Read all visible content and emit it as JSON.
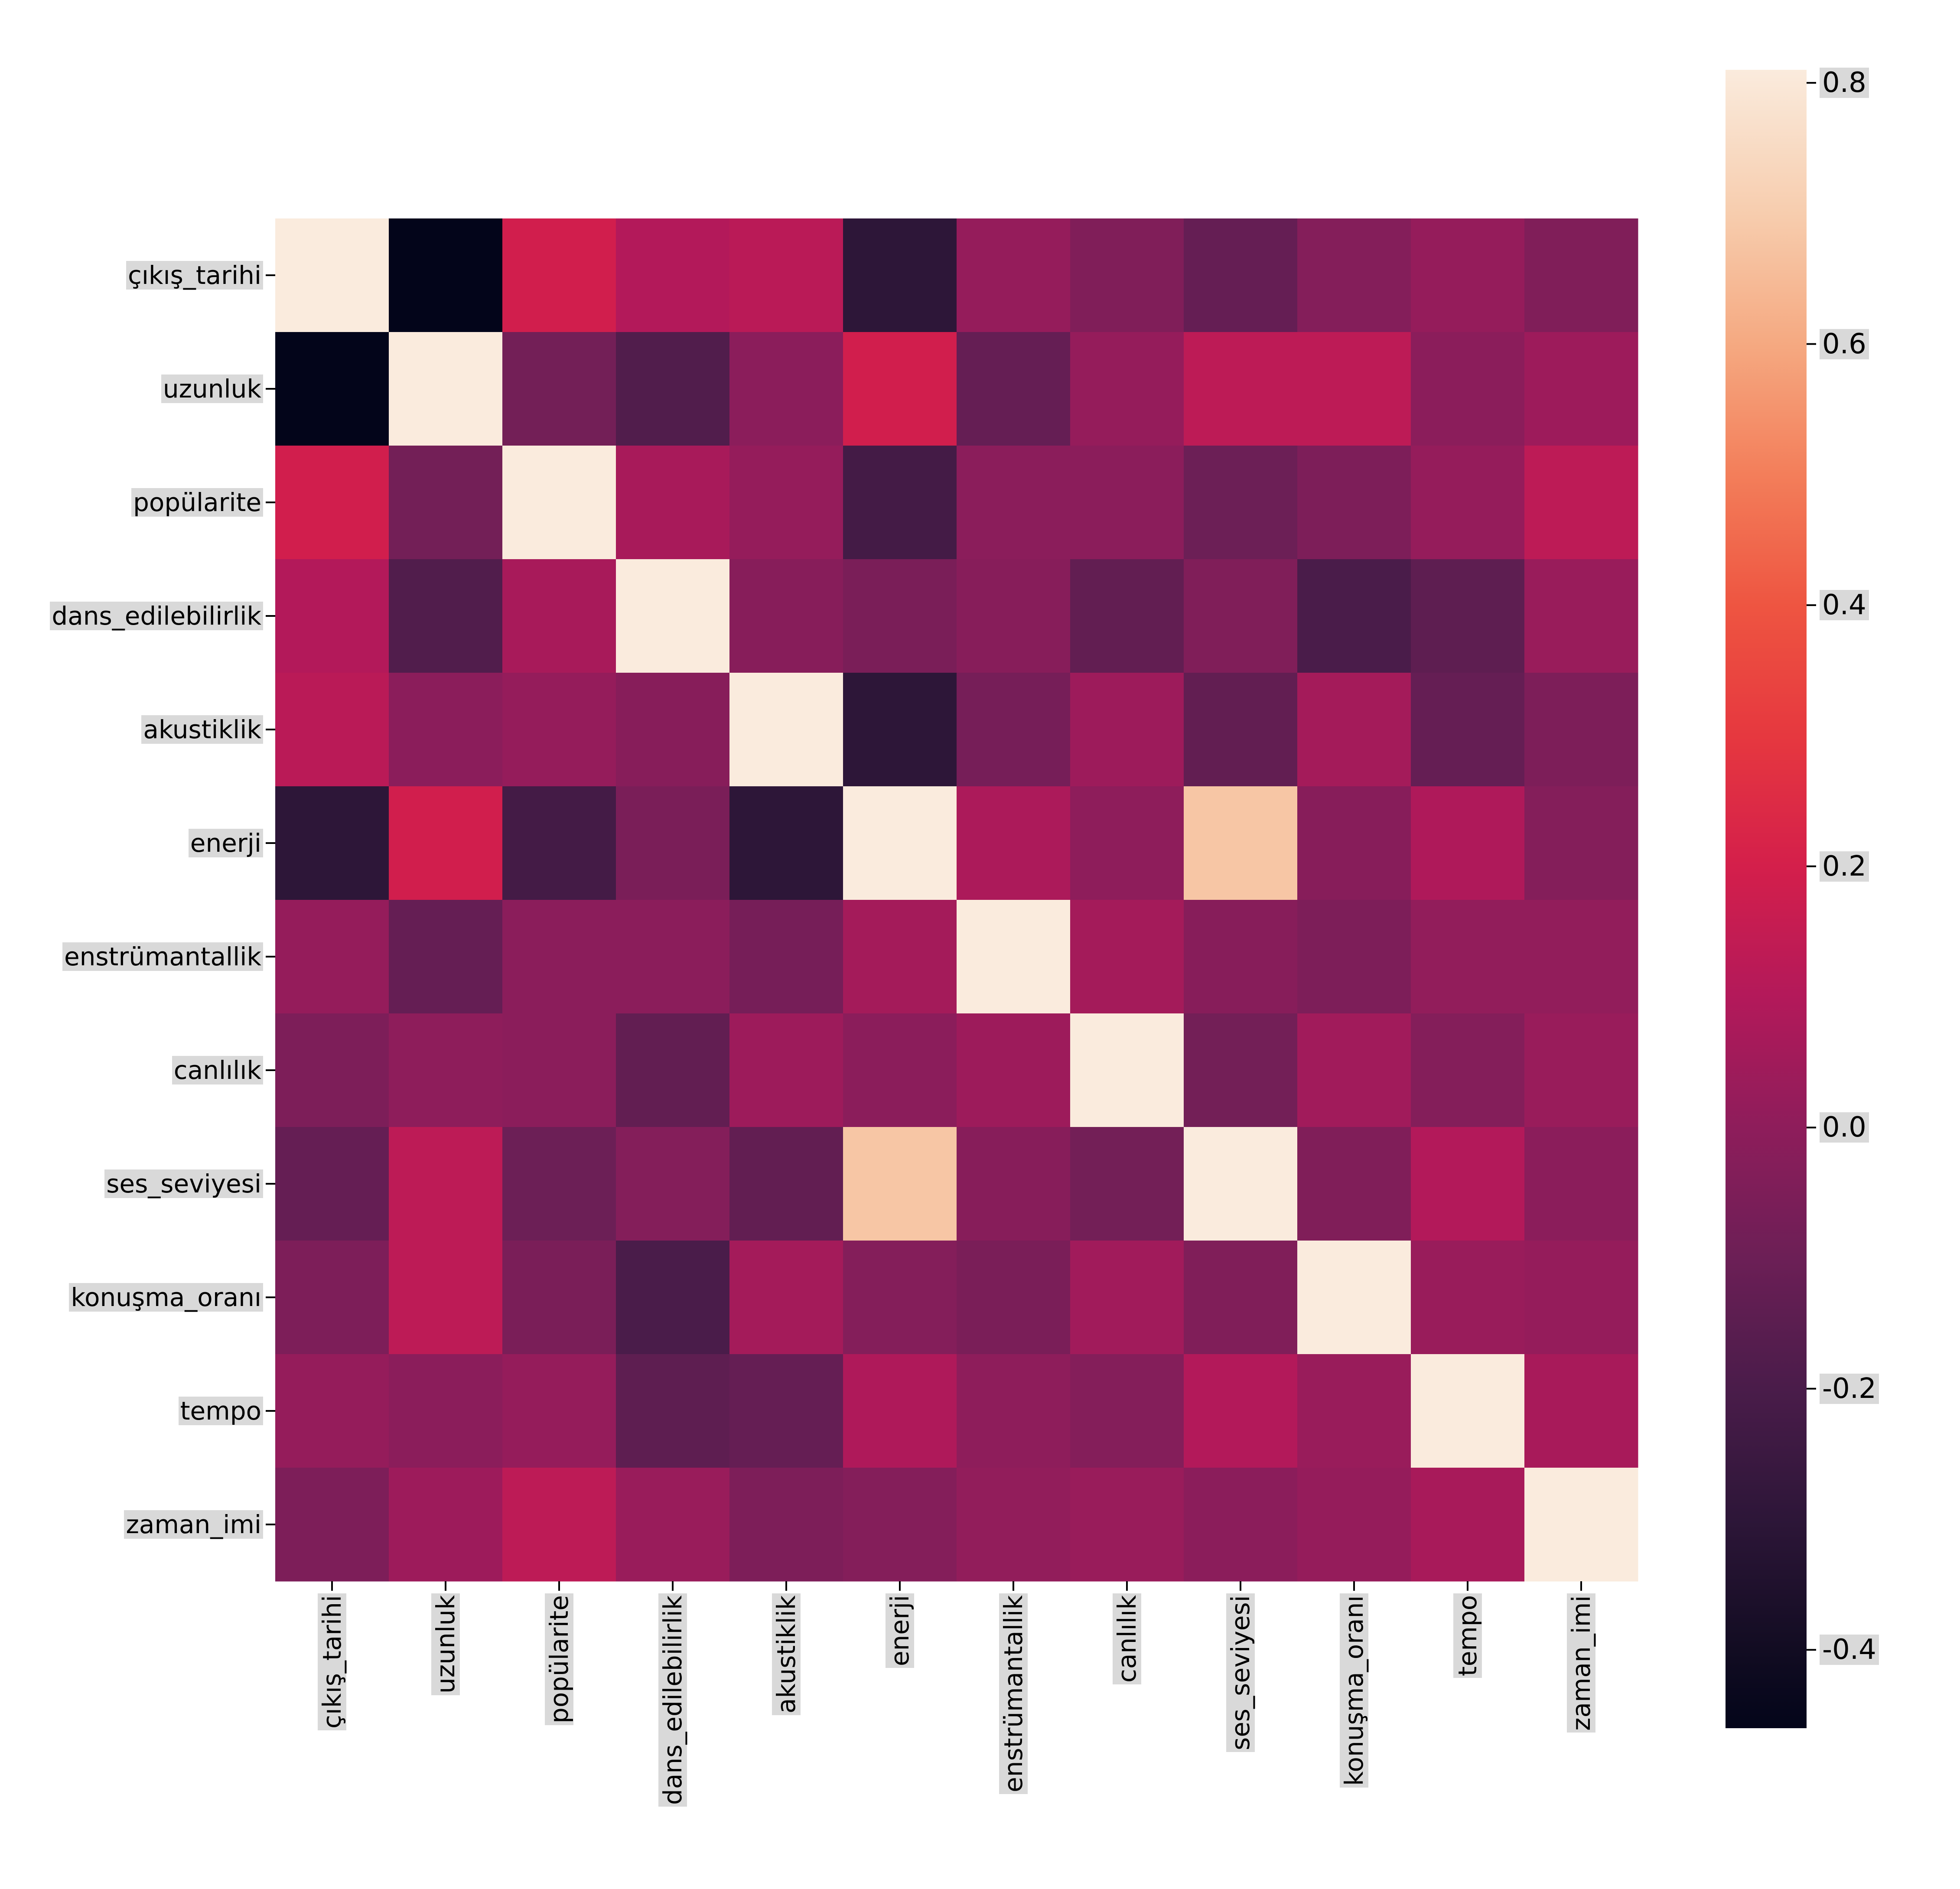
{
  "chart_data": {
    "type": "heatmap",
    "title": "",
    "xlabel": "",
    "ylabel": "",
    "categories": [
      "çıkış_tarihi",
      "uzunluk",
      "popülarite",
      "dans_edilebilirlik",
      "akustiklik",
      "enerji",
      "enstrümantallik",
      "canlılık",
      "ses_seviyesi",
      "konuşma_oranı",
      "tempo",
      "zaman_imi"
    ],
    "values": [
      [
        1.0,
        -0.46,
        0.19,
        0.1,
        0.12,
        -0.3,
        0.02,
        -0.04,
        -0.12,
        -0.03,
        0.02,
        -0.04
      ],
      [
        -0.46,
        1.0,
        -0.08,
        -0.18,
        -0.01,
        0.19,
        -0.12,
        0.02,
        0.13,
        0.13,
        -0.01,
        0.04
      ],
      [
        0.19,
        -0.08,
        1.0,
        0.07,
        0.02,
        -0.22,
        -0.01,
        -0.01,
        -0.1,
        -0.05,
        0.02,
        0.13
      ],
      [
        0.1,
        -0.18,
        0.07,
        1.0,
        -0.02,
        -0.06,
        -0.02,
        -0.13,
        -0.04,
        -0.2,
        -0.14,
        0.03
      ],
      [
        0.12,
        -0.01,
        0.02,
        -0.02,
        1.0,
        -0.3,
        -0.07,
        0.04,
        -0.13,
        0.06,
        -0.12,
        -0.05
      ],
      [
        -0.3,
        0.19,
        -0.22,
        -0.06,
        -0.3,
        1.0,
        0.08,
        0.0,
        0.68,
        -0.02,
        0.09,
        -0.03
      ],
      [
        0.02,
        -0.12,
        -0.01,
        -0.01,
        -0.07,
        0.06,
        1.0,
        0.06,
        -0.02,
        -0.05,
        0.01,
        0.01
      ],
      [
        -0.05,
        0.0,
        -0.01,
        -0.13,
        0.04,
        -0.01,
        0.04,
        1.0,
        -0.08,
        0.05,
        -0.03,
        0.03
      ],
      [
        -0.12,
        0.13,
        -0.1,
        -0.03,
        -0.13,
        0.68,
        -0.02,
        -0.08,
        1.0,
        -0.04,
        0.1,
        -0.01
      ],
      [
        -0.05,
        0.13,
        -0.06,
        -0.2,
        0.06,
        -0.03,
        -0.06,
        0.05,
        -0.04,
        1.0,
        0.03,
        0.02
      ],
      [
        0.02,
        -0.01,
        0.02,
        -0.14,
        -0.12,
        0.09,
        0.0,
        -0.03,
        0.1,
        0.03,
        1.0,
        0.07
      ],
      [
        -0.05,
        0.04,
        0.13,
        0.03,
        -0.05,
        -0.03,
        0.01,
        0.03,
        -0.01,
        0.02,
        0.07,
        1.0
      ]
    ],
    "colormap": "rocket",
    "color_range": [
      -0.46,
      0.81
    ],
    "colorbar": {
      "position": "right",
      "ticks": [
        0.8,
        0.6,
        0.4,
        0.2,
        0.0,
        -0.2,
        -0.4
      ],
      "tick_labels": [
        "0.8",
        "0.6",
        "0.4",
        "0.2",
        "0.0",
        "-0.2",
        "-0.4"
      ]
    },
    "color_stops": [
      [
        -0.46,
        "#03051a"
      ],
      [
        -0.4,
        "#120c22"
      ],
      [
        -0.3,
        "#2d1638"
      ],
      [
        -0.2,
        "#4a1c4a"
      ],
      [
        -0.1,
        "#6c1f56"
      ],
      [
        0.0,
        "#8e1d5b"
      ],
      [
        0.1,
        "#b3195a"
      ],
      [
        0.2,
        "#d41f4b"
      ],
      [
        0.3,
        "#e6383f"
      ],
      [
        0.4,
        "#ee5541"
      ],
      [
        0.5,
        "#f37e5a"
      ],
      [
        0.6,
        "#f5a981"
      ],
      [
        0.7,
        "#f7cdae"
      ],
      [
        0.81,
        "#faebdd"
      ]
    ]
  }
}
